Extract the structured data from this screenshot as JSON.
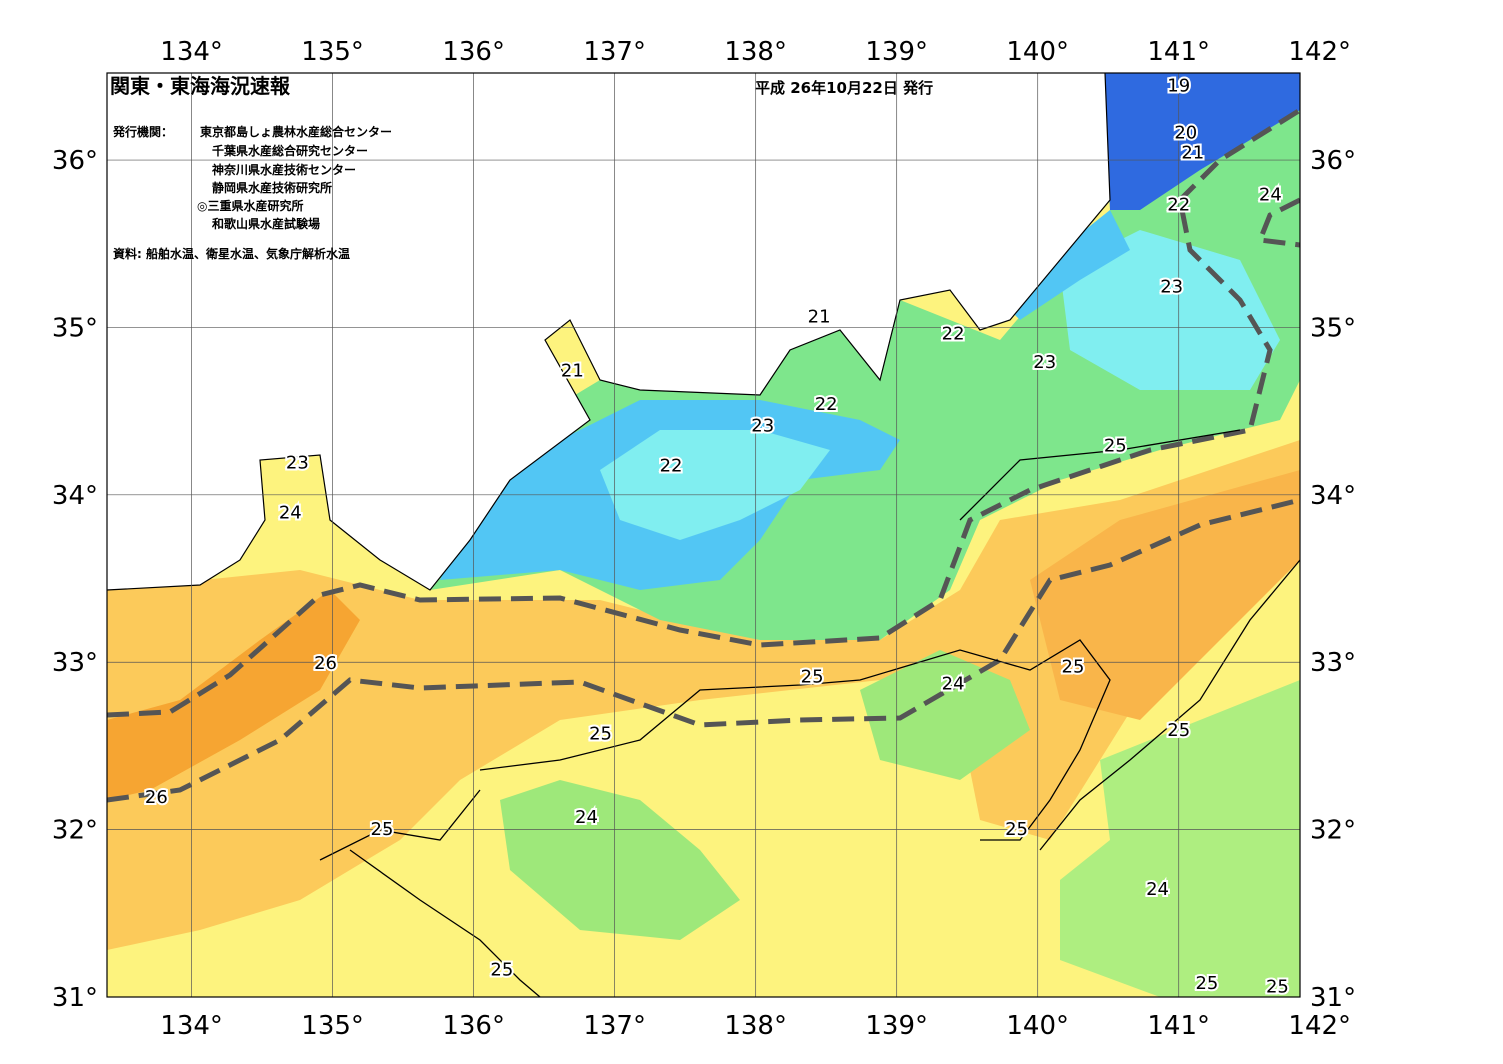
{
  "map": {
    "title": "関東・東海海況速報",
    "issue_date": "平成 26年10月22日 発行",
    "issuer_label": "発行機関：",
    "issuers": [
      "東京都島しょ農林水産総合センター",
      "千葉県水産総合研究センター",
      "神奈川県水産技術センター",
      "静岡県水産技術研究所",
      "◎三重県水産研究所",
      "和歌山県水産試験場"
    ],
    "source": "資料: 船舶水温、衛星水温、気象庁解析水温",
    "xlim": [
      133.4,
      141.86
    ],
    "ylim": [
      31,
      36.52
    ],
    "xticks": [
      {
        "value": 134,
        "label": "134°"
      },
      {
        "value": 135,
        "label": "135°"
      },
      {
        "value": 136,
        "label": "136°"
      },
      {
        "value": 137,
        "label": "137°"
      },
      {
        "value": 138,
        "label": "138°"
      },
      {
        "value": 139,
        "label": "139°"
      },
      {
        "value": 140,
        "label": "140°"
      },
      {
        "value": 141,
        "label": "141°"
      },
      {
        "value": 142,
        "label": "142°"
      }
    ],
    "yticks": [
      {
        "value": 31,
        "label": "31°"
      },
      {
        "value": 32,
        "label": "32°"
      },
      {
        "value": 33,
        "label": "33°"
      },
      {
        "value": 34,
        "label": "34°"
      },
      {
        "value": 35,
        "label": "35°"
      },
      {
        "value": 36,
        "label": "36°"
      }
    ],
    "contour_labels": [
      {
        "value": 19,
        "lon": 141,
        "lat": 36.45
      },
      {
        "value": 20,
        "lon": 141.05,
        "lat": 36.17
      },
      {
        "value": 21,
        "lon": 141.1,
        "lat": 36.05
      },
      {
        "value": 22,
        "lon": 141,
        "lat": 35.74
      },
      {
        "value": 24,
        "lon": 141.65,
        "lat": 35.8
      },
      {
        "value": 23,
        "lon": 140.95,
        "lat": 35.25
      },
      {
        "value": 23,
        "lon": 140.05,
        "lat": 34.8
      },
      {
        "value": 22,
        "lon": 139.4,
        "lat": 34.97
      },
      {
        "value": 21,
        "lon": 138.45,
        "lat": 35.07
      },
      {
        "value": 21,
        "lon": 136.7,
        "lat": 34.75
      },
      {
        "value": 22,
        "lon": 138.5,
        "lat": 34.55
      },
      {
        "value": 23,
        "lon": 138.05,
        "lat": 34.42
      },
      {
        "value": 22,
        "lon": 137.4,
        "lat": 34.18
      },
      {
        "value": 23,
        "lon": 134.75,
        "lat": 34.2
      },
      {
        "value": 24,
        "lon": 134.7,
        "lat": 33.9
      },
      {
        "value": 25,
        "lon": 140.55,
        "lat": 34.3
      },
      {
        "value": 26,
        "lon": 134.95,
        "lat": 33
      },
      {
        "value": 25,
        "lon": 138.4,
        "lat": 32.92
      },
      {
        "value": 24,
        "lon": 139.4,
        "lat": 32.88
      },
      {
        "value": 25,
        "lon": 140.25,
        "lat": 32.98
      },
      {
        "value": 25,
        "lon": 136.9,
        "lat": 32.58
      },
      {
        "value": 25,
        "lon": 141,
        "lat": 32.6
      },
      {
        "value": 24,
        "lon": 136.8,
        "lat": 32.08
      },
      {
        "value": 25,
        "lon": 135.35,
        "lat": 32.01
      },
      {
        "value": 25,
        "lon": 139.85,
        "lat": 32.01
      },
      {
        "value": 24,
        "lon": 140.85,
        "lat": 31.65
      },
      {
        "value": 26,
        "lon": 133.75,
        "lat": 32.2
      },
      {
        "value": 25,
        "lon": 136.2,
        "lat": 31.17
      },
      {
        "value": 25,
        "lon": 141.2,
        "lat": 31.09
      },
      {
        "value": 25,
        "lon": 141.7,
        "lat": 31.07
      }
    ]
  }
}
